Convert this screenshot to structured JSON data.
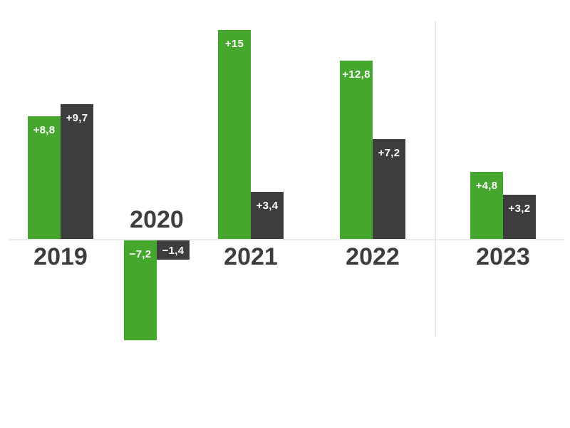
{
  "chart_data": {
    "type": "bar",
    "title": "",
    "xlabel": "",
    "ylabel": "",
    "categories": [
      "2019",
      "2020",
      "2021",
      "2022",
      "2023"
    ],
    "series": [
      {
        "name": "green-series",
        "color": "#46a72f",
        "values": [
          8.8,
          -7.2,
          15,
          12.8,
          4.8
        ],
        "labels": [
          "+8,8",
          "−7,2",
          "+15",
          "+12,8",
          "+4,8"
        ]
      },
      {
        "name": "dark-series",
        "color": "#3d3d3d",
        "values": [
          9.7,
          -1.4,
          3.4,
          7.2,
          3.2
        ],
        "labels": [
          "+9,7",
          "−1,4",
          "+3,4",
          "+7,2",
          "+3,2"
        ]
      }
    ],
    "value_label_color": "#ffffff",
    "category_label_color": "#3d3d3d",
    "baseline_color": "#ececec",
    "separator_color": "#e9e9e9",
    "separator_between": [
      "2022",
      "2023"
    ],
    "ylim": [
      -8,
      15.5
    ],
    "grid": "off",
    "legend": "none",
    "decimal_separator": ","
  }
}
